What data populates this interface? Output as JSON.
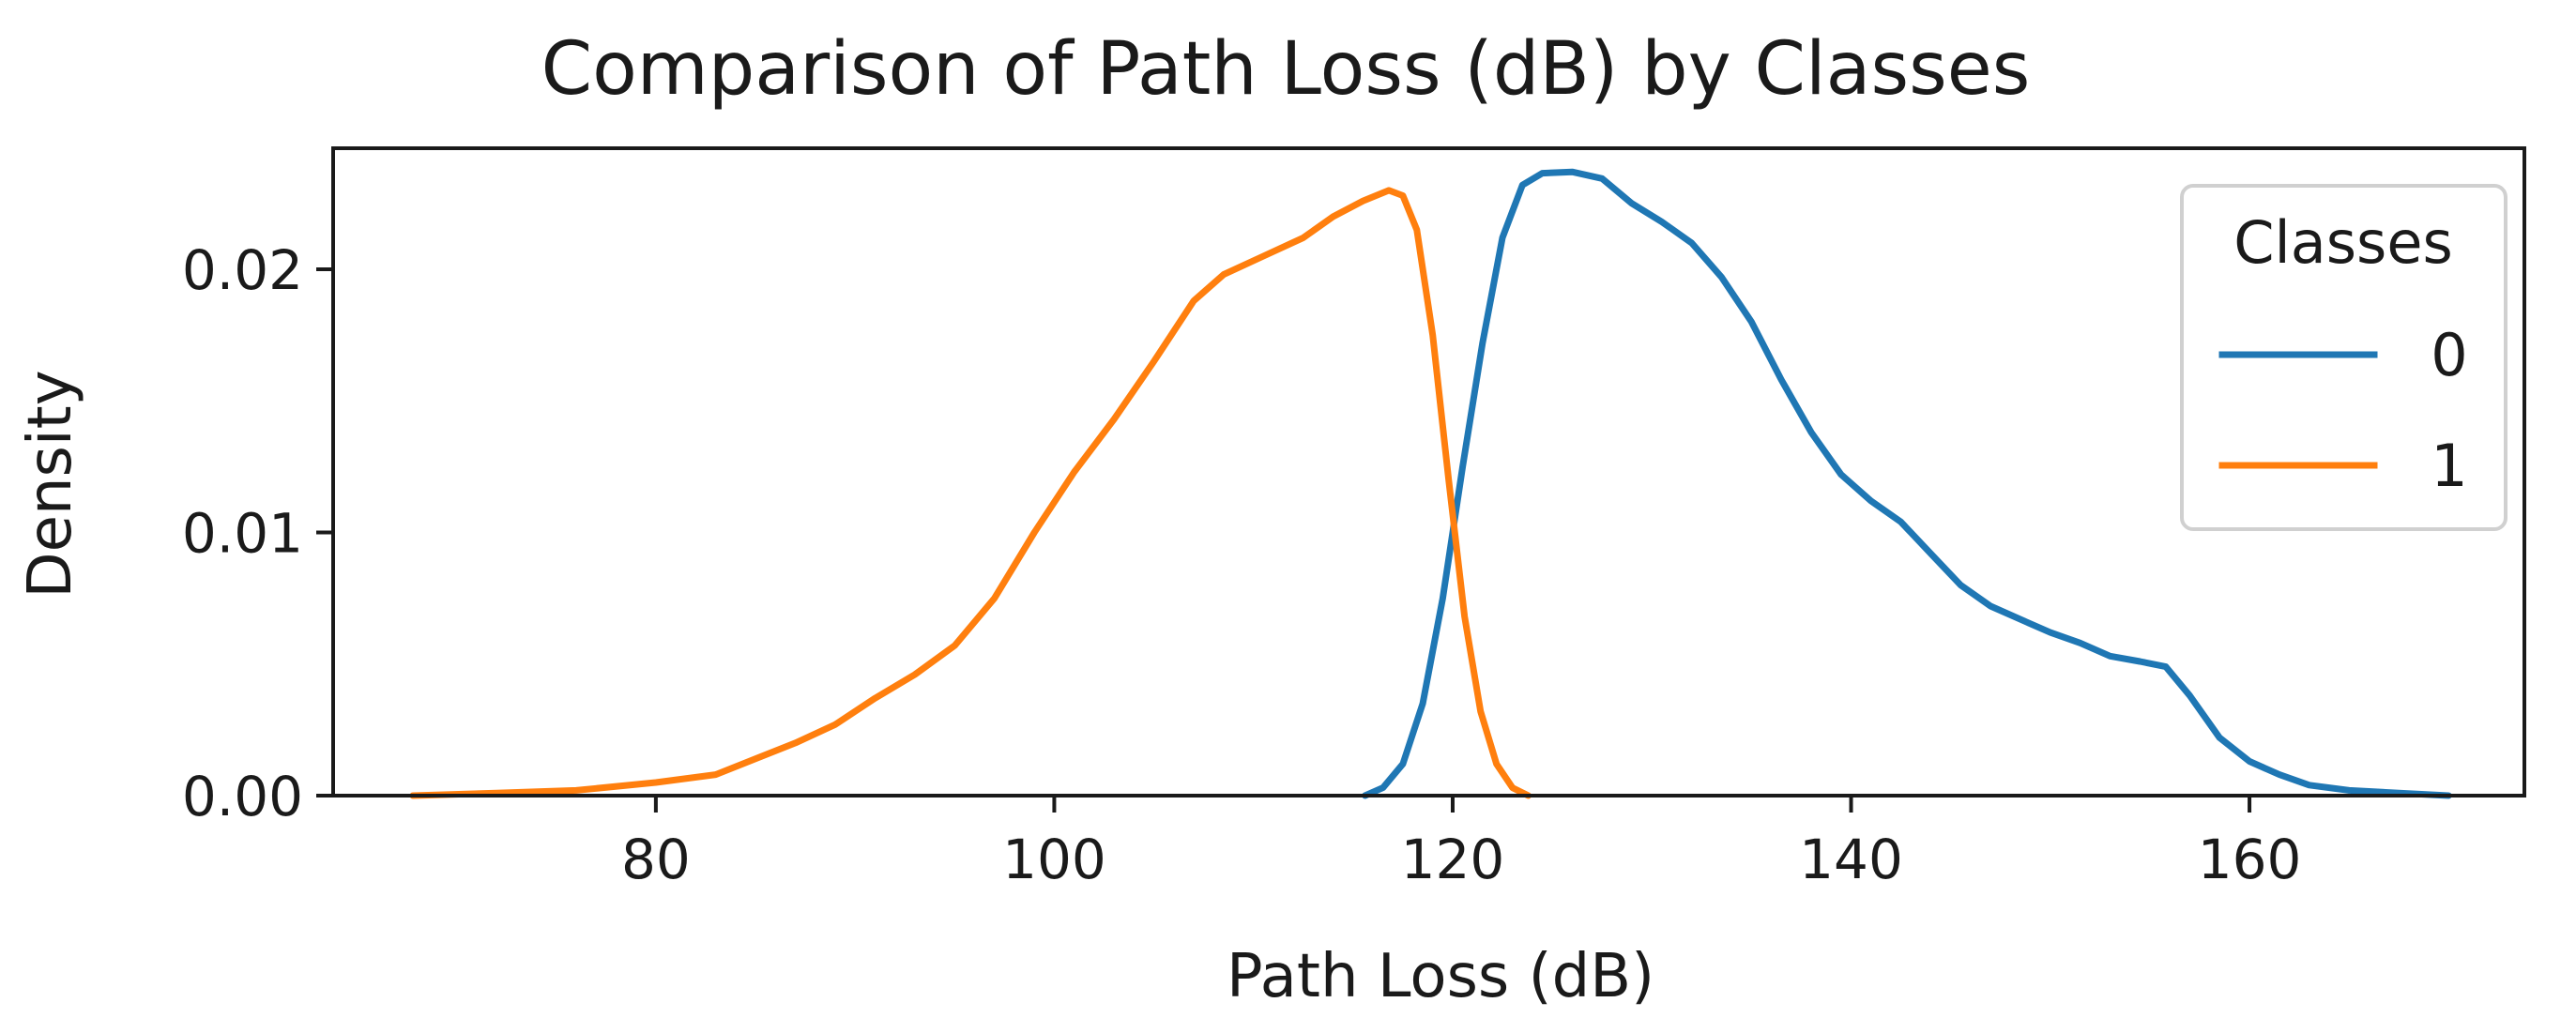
{
  "chart_data": {
    "type": "line",
    "title": "Comparison of Path Loss (dB) by Classes",
    "xlabel": "Path Loss (dB)",
    "ylabel": "Density",
    "xlim": [
      63.8,
      173.8
    ],
    "ylim": [
      0.0,
      0.0246
    ],
    "x_ticks": [
      80,
      100,
      120,
      140,
      160
    ],
    "x_tick_labels": [
      "80",
      "100",
      "120",
      "140",
      "160"
    ],
    "y_ticks": [
      0.0,
      0.01,
      0.02
    ],
    "y_tick_labels": [
      "0.00",
      "0.01",
      "0.02"
    ],
    "grid": false,
    "legend": {
      "title": "Classes",
      "placement": "top-right"
    },
    "series": [
      {
        "name": "0",
        "color": "#1f77b4",
        "points": [
          [
            115.6,
            0.0
          ],
          [
            116.5,
            0.0003
          ],
          [
            117.5,
            0.0012
          ],
          [
            118.5,
            0.0035
          ],
          [
            119.5,
            0.0075
          ],
          [
            120.5,
            0.0125
          ],
          [
            121.5,
            0.0172
          ],
          [
            122.5,
            0.0212
          ],
          [
            123.5,
            0.0232
          ],
          [
            124.5,
            0.02365
          ],
          [
            126.0,
            0.0237
          ],
          [
            127.5,
            0.02345
          ],
          [
            129.0,
            0.0225
          ],
          [
            130.5,
            0.0218
          ],
          [
            132.0,
            0.021
          ],
          [
            133.5,
            0.0197
          ],
          [
            135.0,
            0.018
          ],
          [
            136.5,
            0.0158
          ],
          [
            138.0,
            0.0138
          ],
          [
            139.5,
            0.0122
          ],
          [
            141.0,
            0.0112
          ],
          [
            142.5,
            0.0104
          ],
          [
            144.0,
            0.0092
          ],
          [
            145.5,
            0.008
          ],
          [
            147.0,
            0.0072
          ],
          [
            148.5,
            0.0067
          ],
          [
            150.0,
            0.0062
          ],
          [
            151.5,
            0.0058
          ],
          [
            153.0,
            0.0053
          ],
          [
            154.5,
            0.0051
          ],
          [
            155.8,
            0.0049
          ],
          [
            157.0,
            0.0038
          ],
          [
            158.5,
            0.0022
          ],
          [
            160.0,
            0.0013
          ],
          [
            161.5,
            0.0008
          ],
          [
            163.0,
            0.0004
          ],
          [
            165.0,
            0.0002
          ],
          [
            167.5,
            0.0001
          ],
          [
            170.0,
            0.0
          ]
        ]
      },
      {
        "name": "1",
        "color": "#ff7f0e",
        "points": [
          [
            67.8,
            0.0
          ],
          [
            72.0,
            0.0001
          ],
          [
            76.0,
            0.0002
          ],
          [
            80.0,
            0.0005
          ],
          [
            83.0,
            0.0008
          ],
          [
            85.0,
            0.0014
          ],
          [
            87.0,
            0.002
          ],
          [
            89.0,
            0.0027
          ],
          [
            91.0,
            0.0037
          ],
          [
            93.0,
            0.0046
          ],
          [
            95.0,
            0.0057
          ],
          [
            97.0,
            0.0075
          ],
          [
            99.0,
            0.01
          ],
          [
            101.0,
            0.0123
          ],
          [
            103.0,
            0.0143
          ],
          [
            105.0,
            0.0165
          ],
          [
            107.0,
            0.0188
          ],
          [
            108.5,
            0.0198
          ],
          [
            110.5,
            0.0205
          ],
          [
            112.5,
            0.0212
          ],
          [
            114.0,
            0.022
          ],
          [
            115.5,
            0.0226
          ],
          [
            116.8,
            0.023
          ],
          [
            117.5,
            0.0228
          ],
          [
            118.2,
            0.0215
          ],
          [
            119.0,
            0.0175
          ],
          [
            119.8,
            0.012
          ],
          [
            120.6,
            0.0068
          ],
          [
            121.4,
            0.0032
          ],
          [
            122.2,
            0.0012
          ],
          [
            123.0,
            0.0003
          ],
          [
            123.8,
            0.0
          ]
        ]
      }
    ]
  }
}
